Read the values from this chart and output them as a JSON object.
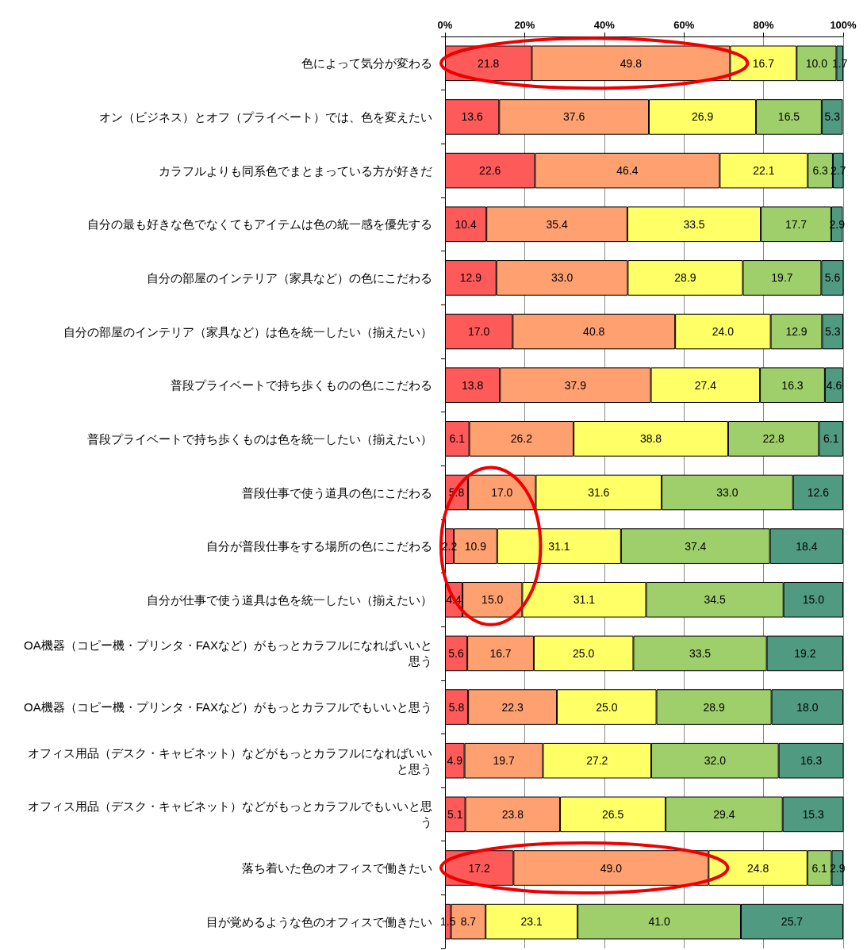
{
  "chart_data": {
    "type": "bar",
    "orientation": "horizontal",
    "stacked": true,
    "grid": "x",
    "categories": [
      "色によって気分が変わる",
      "オン（ビジネス）とオフ（プライベート）では、色を変えたい",
      "カラフルよりも同系色でまとまっている方が好きだ",
      "自分の最も好きな色でなくてもアイテムは色の統一感を優先する",
      "自分の部屋のインテリア（家具など）の色にこだわる",
      "自分の部屋のインテリア（家具など）は色を統一したい（揃えたい）",
      "普段プライベートで持ち歩くものの色にこだわる",
      "普段プライベートで持ち歩くものは色を統一したい（揃えたい）",
      "普段仕事で使う道具の色にこだわる",
      "自分が普段仕事をする場所の色にこだわる",
      "自分が仕事で使う道具は色を統一したい（揃えたい）",
      "OA機器（コピー機・プリンタ・FAXなど）がもっとカラフルになればいいと思う",
      "OA機器（コピー機・プリンタ・FAXなど）がもっとカラフルでもいいと思う",
      "オフィス用品（デスク・キャビネット）などがもっとカラフルになればいいと思う",
      "オフィス用品（デスク・キャビネット）などがもっとカラフルでもいいと思う",
      "落ち着いた色のオフィスで働きたい",
      "目が覚めるような色のオフィスで働きたい"
    ],
    "xlim": [
      0,
      100
    ],
    "xticks": [
      {
        "value": 0,
        "label": "0%"
      },
      {
        "value": 20,
        "label": "20%"
      },
      {
        "value": 40,
        "label": "40%"
      },
      {
        "value": 60,
        "label": "60%"
      },
      {
        "value": 80,
        "label": "80%"
      },
      {
        "value": 100,
        "label": "100%"
      }
    ],
    "series": [
      {
        "color": "#ff5a5a",
        "values": [
          21.8,
          13.6,
          22.6,
          10.4,
          12.9,
          17.0,
          13.8,
          6.1,
          5.8,
          2.2,
          4.4,
          5.6,
          5.8,
          4.9,
          5.1,
          17.2,
          1.5
        ],
        "value_labels": [
          "21.8",
          "13.6",
          "22.6",
          "10.4",
          "12.9",
          "17.0",
          "13.8",
          "6.1",
          "5.8",
          "2.2",
          "4.4",
          "5.6",
          "5.8",
          "4.9",
          "5.1",
          "17.2",
          "1.5"
        ]
      },
      {
        "color": "#ffa070",
        "values": [
          49.8,
          37.6,
          46.4,
          35.4,
          33.0,
          40.8,
          37.9,
          26.2,
          17.0,
          10.9,
          15.0,
          16.7,
          22.3,
          19.7,
          23.8,
          49.0,
          8.7
        ],
        "value_labels": [
          "49.8",
          "37.6",
          "46.4",
          "35.4",
          "33.0",
          "40.8",
          "37.9",
          "26.2",
          "17.0",
          "10.9",
          "15.0",
          "16.7",
          "22.3",
          "19.7",
          "23.8",
          "49.0",
          "8.7"
        ]
      },
      {
        "color": "#ffff66",
        "values": [
          16.7,
          26.9,
          22.1,
          33.5,
          28.9,
          24.0,
          27.4,
          38.8,
          31.6,
          31.1,
          31.1,
          25.0,
          25.0,
          27.2,
          26.5,
          24.8,
          23.1
        ],
        "value_labels": [
          "16.7",
          "26.9",
          "22.1",
          "33.5",
          "28.9",
          "24.0",
          "27.4",
          "38.8",
          "31.6",
          "31.1",
          "31.1",
          "25.0",
          "25.0",
          "27.2",
          "26.5",
          "24.8",
          "23.1"
        ]
      },
      {
        "color": "#9fcf6a",
        "values": [
          10.0,
          16.5,
          6.3,
          17.7,
          19.7,
          12.9,
          16.3,
          22.8,
          33.0,
          37.4,
          34.5,
          33.5,
          28.9,
          32.0,
          29.4,
          6.1,
          41.0
        ],
        "value_labels": [
          "10.0",
          "16.5",
          "6.3",
          "17.7",
          "19.7",
          "12.9",
          "16.3",
          "22.8",
          "33.0",
          "37.4",
          "34.5",
          "33.5",
          "28.9",
          "32.0",
          "29.4",
          "6.1",
          "41.0"
        ]
      },
      {
        "color": "#4f9a80",
        "values": [
          1.7,
          5.3,
          2.7,
          2.9,
          5.6,
          5.3,
          4.6,
          6.1,
          12.6,
          18.4,
          15.0,
          19.2,
          18.0,
          16.3,
          15.3,
          2.9,
          25.7
        ],
        "value_labels": [
          "1.7",
          "5.3",
          "2.7",
          "2.9",
          "5.6",
          "5.3",
          "4.6",
          "6.1",
          "12.6",
          "18.4",
          "15.0",
          "19.2",
          "18.0",
          "16.3",
          "15.3",
          "2.9",
          "25.7"
        ]
      }
    ]
  }
}
